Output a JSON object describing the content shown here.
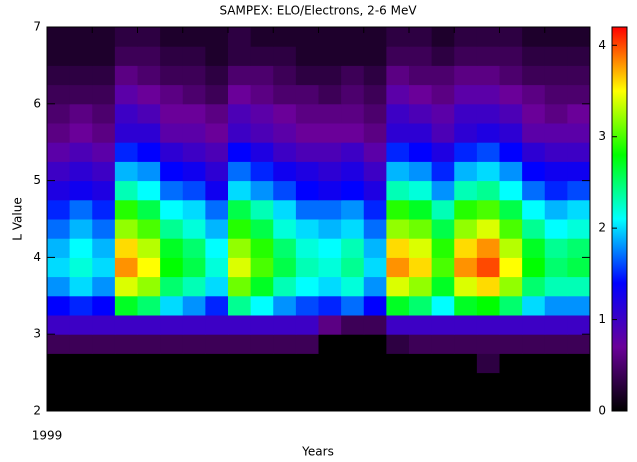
{
  "chart_data": {
    "type": "heatmap",
    "title": "SAMPEX: ELO/Electrons, 2-6 MeV",
    "xlabel": "Years",
    "ylabel": "L Value",
    "xlim": [
      0,
      12
    ],
    "xticks": [
      {
        "value": 0,
        "label": "1999"
      }
    ],
    "xminor": [
      1,
      2,
      3,
      4,
      5,
      6,
      7,
      8,
      9,
      10,
      11
    ],
    "ylim": [
      2,
      7
    ],
    "yticks": [
      2,
      3,
      4,
      5,
      6,
      7
    ],
    "zlim": [
      0,
      4.2
    ],
    "zticks": [
      0,
      1,
      2,
      3,
      4
    ],
    "colormap": [
      "#000000",
      "#6a0099",
      "#0000ff",
      "#00ffff",
      "#00ff00",
      "#ffff00",
      "#ff0000"
    ],
    "x": [
      0.25,
      0.75,
      1.25,
      1.75,
      2.25,
      2.75,
      3.25,
      3.75,
      4.25,
      4.75,
      5.25,
      5.75,
      6.25,
      6.75,
      7.25,
      7.75,
      8.25,
      8.75,
      9.25,
      9.75,
      10.25,
      10.75,
      11.25,
      11.75
    ],
    "y": [
      2.125,
      2.375,
      2.625,
      2.875,
      3.125,
      3.375,
      3.625,
      3.875,
      4.125,
      4.375,
      4.625,
      4.875,
      5.125,
      5.375,
      5.625,
      5.875,
      6.125,
      6.375,
      6.625,
      6.875
    ],
    "z": [
      [
        0,
        0,
        0,
        0,
        0,
        0,
        0,
        0,
        0,
        0,
        0,
        0,
        0,
        0,
        0,
        0,
        0,
        0,
        0,
        0,
        0,
        0,
        0,
        0
      ],
      [
        0,
        0,
        0,
        0,
        0,
        0,
        0,
        0,
        0,
        0,
        0,
        0,
        0,
        0,
        0,
        0,
        0,
        0,
        0,
        0,
        0,
        0,
        0,
        0
      ],
      [
        0,
        0,
        0,
        0,
        0,
        0,
        0,
        0,
        0,
        0,
        0,
        0,
        0,
        0,
        0,
        0,
        0,
        0,
        0,
        0.3,
        0,
        0,
        0,
        0
      ],
      [
        0.4,
        0.4,
        0.4,
        0.4,
        0.4,
        0.4,
        0.4,
        0.4,
        0.4,
        0.4,
        0.4,
        0.4,
        0,
        0,
        0,
        0.3,
        0.4,
        0.4,
        0.4,
        0.4,
        0.4,
        0.4,
        0.4,
        0.4
      ],
      [
        1.0,
        1.0,
        1.0,
        1.0,
        1.0,
        1.0,
        1.0,
        1.0,
        1.0,
        1.0,
        1.0,
        1.0,
        0.6,
        0.4,
        0.4,
        1.0,
        1.0,
        1.0,
        1.0,
        1.0,
        1.0,
        1.0,
        1.0,
        1.0
      ],
      [
        1.4,
        1.5,
        1.4,
        2.7,
        2.5,
        2.0,
        1.8,
        1.5,
        2.4,
        2.1,
        1.8,
        1.6,
        1.5,
        1.7,
        1.4,
        2.7,
        2.5,
        2.1,
        2.7,
        2.8,
        2.5,
        2.0,
        1.8,
        1.8
      ],
      [
        1.8,
        2.0,
        1.8,
        3.4,
        3.2,
        2.5,
        2.3,
        2.0,
        3.1,
        2.7,
        2.3,
        2.1,
        2.0,
        2.2,
        1.8,
        3.4,
        3.2,
        2.7,
        3.4,
        3.6,
        3.2,
        2.5,
        2.3,
        2.3
      ],
      [
        2.0,
        2.2,
        2.0,
        3.8,
        3.5,
        2.8,
        2.6,
        2.2,
        3.4,
        3.0,
        2.6,
        2.3,
        2.2,
        2.4,
        2.0,
        3.8,
        3.6,
        3.0,
        3.8,
        4.0,
        3.5,
        2.8,
        2.5,
        2.6
      ],
      [
        1.9,
        2.1,
        1.9,
        3.6,
        3.3,
        2.7,
        2.5,
        2.1,
        3.2,
        2.9,
        2.5,
        2.2,
        2.1,
        2.3,
        1.9,
        3.6,
        3.4,
        2.9,
        3.6,
        3.8,
        3.3,
        2.7,
        2.4,
        2.5
      ],
      [
        1.7,
        1.9,
        1.7,
        3.2,
        3.0,
        2.4,
        2.2,
        1.9,
        2.9,
        2.6,
        2.2,
        2.0,
        1.9,
        2.0,
        1.7,
        3.2,
        3.1,
        2.6,
        3.2,
        3.4,
        3.0,
        2.4,
        2.1,
        2.2
      ],
      [
        1.5,
        1.7,
        1.5,
        2.9,
        2.6,
        2.1,
        2.0,
        1.7,
        2.6,
        2.3,
        2.0,
        1.7,
        1.7,
        1.8,
        1.5,
        2.9,
        2.7,
        2.3,
        2.9,
        3.0,
        2.6,
        2.1,
        1.9,
        2.0
      ],
      [
        1.2,
        1.3,
        1.2,
        2.3,
        2.1,
        1.7,
        1.6,
        1.3,
        2.0,
        1.8,
        1.6,
        1.4,
        1.3,
        1.4,
        1.2,
        2.3,
        2.2,
        1.8,
        2.3,
        2.4,
        2.1,
        1.7,
        1.5,
        1.6
      ],
      [
        1.0,
        1.1,
        1.0,
        1.9,
        1.8,
        1.4,
        1.3,
        1.1,
        1.7,
        1.5,
        1.3,
        1.2,
        1.1,
        1.2,
        1.0,
        1.9,
        1.8,
        1.5,
        1.9,
        2.0,
        1.8,
        1.4,
        1.3,
        1.3
      ],
      [
        0.8,
        0.9,
        0.8,
        1.5,
        1.4,
        1.1,
        1.0,
        0.9,
        1.4,
        1.2,
        1.0,
        0.9,
        0.9,
        1.0,
        0.8,
        1.5,
        1.4,
        1.2,
        1.5,
        1.6,
        1.4,
        1.1,
        1.0,
        1.0
      ],
      [
        0.6,
        0.7,
        0.6,
        1.1,
        1.1,
        0.8,
        0.8,
        0.7,
        1.0,
        0.9,
        0.8,
        0.7,
        0.7,
        0.7,
        0.6,
        1.1,
        1.1,
        0.9,
        1.1,
        1.2,
        1.1,
        0.8,
        0.8,
        0.8
      ],
      [
        0.5,
        0.6,
        0.5,
        1.0,
        0.9,
        0.7,
        0.7,
        0.6,
        0.9,
        0.8,
        0.7,
        0.6,
        0.6,
        0.6,
        0.5,
        1.0,
        0.9,
        0.8,
        1.0,
        1.0,
        0.9,
        0.7,
        0.6,
        0.7
      ],
      [
        0.4,
        0.4,
        0.4,
        0.8,
        0.7,
        0.6,
        0.5,
        0.4,
        0.7,
        0.6,
        0.5,
        0.5,
        0.4,
        0.5,
        0.4,
        0.8,
        0.7,
        0.6,
        0.8,
        0.8,
        0.7,
        0.6,
        0.5,
        0.5
      ],
      [
        0.3,
        0.3,
        0.3,
        0.6,
        0.5,
        0.4,
        0.4,
        0.3,
        0.5,
        0.5,
        0.4,
        0.3,
        0.3,
        0.4,
        0.3,
        0.6,
        0.5,
        0.5,
        0.6,
        0.6,
        0.5,
        0.4,
        0.4,
        0.4
      ],
      [
        0.2,
        0.2,
        0.2,
        0.4,
        0.4,
        0.3,
        0.3,
        0.2,
        0.3,
        0.3,
        0.3,
        0.2,
        0.2,
        0.2,
        0.2,
        0.4,
        0.4,
        0.3,
        0.4,
        0.4,
        0.4,
        0.3,
        0.3,
        0.3
      ],
      [
        0.2,
        0.2,
        0.2,
        0.3,
        0.3,
        0.2,
        0.2,
        0.2,
        0.3,
        0.2,
        0.2,
        0.2,
        0.2,
        0.2,
        0.2,
        0.3,
        0.3,
        0.2,
        0.3,
        0.3,
        0.3,
        0.2,
        0.2,
        0.2
      ]
    ]
  }
}
